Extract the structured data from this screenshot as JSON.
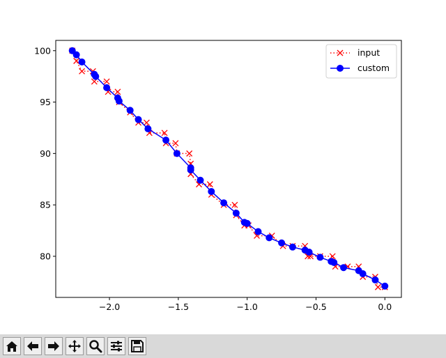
{
  "chart_data": {
    "type": "line",
    "xlim": [
      -2.39,
      0.12
    ],
    "ylim": [
      76.0,
      101.0
    ],
    "xticks": [
      -2.0,
      -1.5,
      -1.0,
      -0.5,
      0.0
    ],
    "xtick_labels": [
      "−2.0",
      "−1.5",
      "−1.0",
      "−0.5",
      "0.0"
    ],
    "yticks": [
      80,
      85,
      90,
      95,
      100
    ],
    "ytick_labels": [
      "80",
      "85",
      "90",
      "95",
      "100"
    ],
    "grid": false,
    "legend_position": "upper right",
    "series": [
      {
        "name": "input",
        "color": "#ff0000",
        "style": "dotted",
        "marker": "x",
        "x": [
          -2.27,
          -2.24,
          -2.2,
          -2.12,
          -2.11,
          -2.02,
          -2.01,
          -1.94,
          -1.93,
          -1.85,
          -1.79,
          -1.73,
          -1.71,
          -1.6,
          -1.59,
          -1.52,
          -1.51,
          -1.42,
          -1.41,
          -1.41,
          -1.35,
          -1.27,
          -1.26,
          -1.17,
          -1.09,
          -1.08,
          -1.02,
          -0.99,
          -0.93,
          -0.82,
          -0.74,
          -0.67,
          -0.58,
          -0.56,
          -0.54,
          -0.47,
          -0.38,
          -0.36,
          -0.27,
          -0.19,
          -0.16,
          -0.07,
          -0.05,
          0.0
        ],
        "y": [
          100,
          99,
          98,
          98,
          97,
          97,
          96,
          96,
          95,
          94,
          93,
          93,
          92,
          92,
          91,
          91,
          90,
          90,
          89,
          88,
          87,
          87,
          86,
          85,
          85,
          84,
          83,
          83,
          82,
          82,
          81,
          81,
          81,
          80,
          80,
          80,
          80,
          79,
          79,
          79,
          78,
          78,
          77,
          77
        ]
      },
      {
        "name": "custom",
        "color": "#0000ff",
        "style": "solid",
        "marker": "o",
        "x": [
          -2.27,
          -2.24,
          -2.2,
          -2.11,
          -2.1,
          -2.02,
          -1.94,
          -1.93,
          -1.85,
          -1.79,
          -1.72,
          -1.59,
          -1.51,
          -1.41,
          -1.41,
          -1.34,
          -1.26,
          -1.17,
          -1.08,
          -1.02,
          -1.0,
          -0.92,
          -0.84,
          -0.75,
          -0.67,
          -0.58,
          -0.55,
          -0.47,
          -0.39,
          -0.37,
          -0.3,
          -0.19,
          -0.16,
          -0.07,
          0.0
        ],
        "y": [
          100.0,
          99.6,
          98.9,
          97.7,
          97.5,
          96.4,
          95.4,
          95.1,
          94.2,
          93.3,
          92.4,
          91.3,
          90.0,
          88.6,
          88.4,
          87.4,
          86.3,
          85.2,
          84.2,
          83.3,
          83.2,
          82.4,
          81.8,
          81.3,
          80.9,
          80.6,
          80.4,
          79.9,
          79.5,
          79.4,
          78.9,
          78.6,
          78.3,
          77.7,
          77.1
        ]
      }
    ]
  },
  "toolbar": {
    "buttons": [
      {
        "icon": "home-icon"
      },
      {
        "icon": "back-arrow-icon"
      },
      {
        "icon": "forward-arrow-icon"
      },
      {
        "icon": "pan-icon"
      },
      {
        "icon": "zoom-icon"
      },
      {
        "icon": "configure-subplots-icon"
      },
      {
        "icon": "save-icon"
      }
    ]
  }
}
